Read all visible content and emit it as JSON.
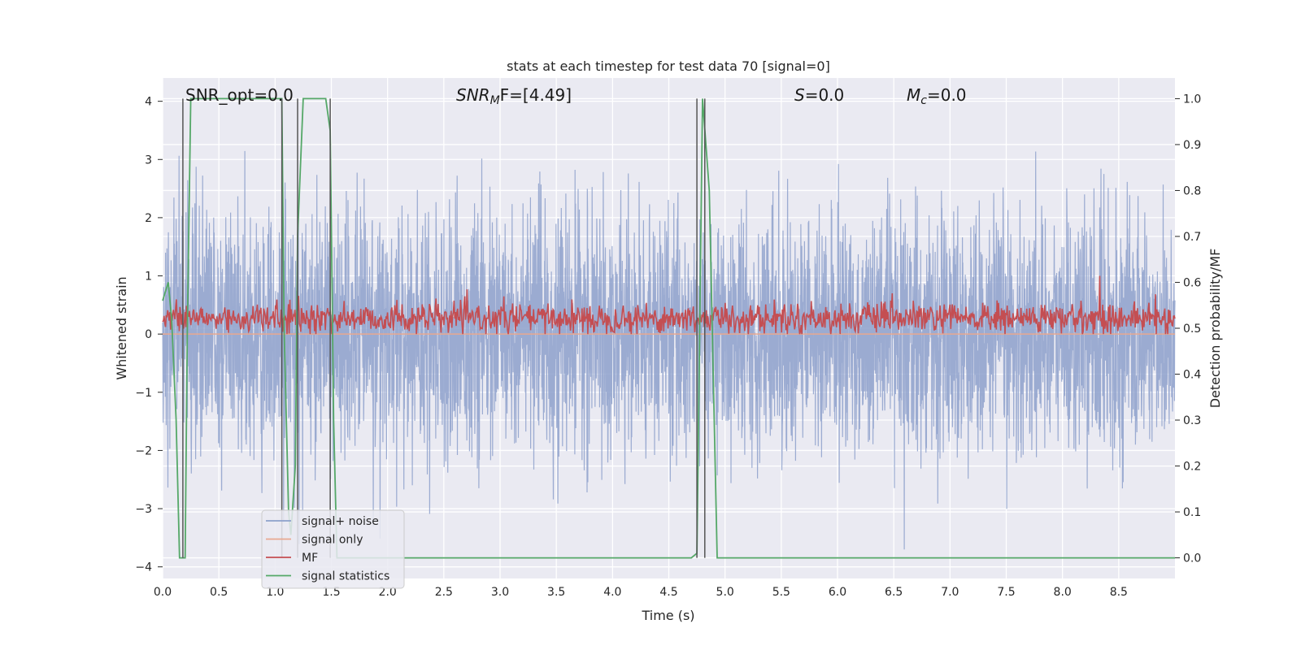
{
  "chart_data": {
    "type": "line",
    "title": "stats at each timestep for test data 70 [signal=0]",
    "xlabel": "Time (s)",
    "ylabel_left": "Whitened strain",
    "ylabel_right": "Detection probability/MF",
    "xlim": [
      0.0,
      9.0
    ],
    "ylim_left": [
      -4.2,
      4.4
    ],
    "ylim_right": [
      -0.045,
      1.045
    ],
    "x_ticks": [
      "0.0",
      "0.5",
      "1.0",
      "1.5",
      "2.0",
      "2.5",
      "3.0",
      "3.5",
      "4.0",
      "4.5",
      "5.0",
      "5.5",
      "6.0",
      "6.5",
      "7.0",
      "7.5",
      "8.0",
      "8.5"
    ],
    "y_ticks_left": [
      "−4",
      "−3",
      "−2",
      "−1",
      "0",
      "1",
      "2",
      "3",
      "4"
    ],
    "y_ticks_right": [
      "0.0",
      "0.1",
      "0.2",
      "0.3",
      "0.4",
      "0.5",
      "0.6",
      "0.7",
      "0.8",
      "0.9",
      "1.0"
    ],
    "grid": true,
    "legend_position": "bottom-left",
    "annotations": {
      "snr_opt": "SNR_opt=0.0",
      "snr_mf_base": "SNR",
      "snr_mf_sub": "M",
      "snr_mf_rest": "F=[4.49]",
      "s_sym": "S",
      "s_val": "=0.0",
      "mc_base": "M",
      "mc_sub": "c",
      "mc_val": "=0.0"
    },
    "series": [
      {
        "name": "signal+ noise",
        "axis": "left",
        "color": "#8da0cb",
        "description_note": "dense gaussian noise, approx. amplitude range -3.7 to 3.4",
        "x_range": [
          0.0,
          9.0
        ],
        "noise_std": 1.0
      },
      {
        "name": "signal only",
        "axis": "left",
        "color": "#e8a890",
        "x": [
          0.0,
          9.0
        ],
        "y": [
          0.0,
          0.0
        ]
      },
      {
        "name": "MF",
        "axis": "left",
        "color": "#c44e52",
        "x_range": [
          0.0,
          9.0
        ],
        "mean": 0.27,
        "spread": 0.13,
        "peak": {
          "x": 8.33,
          "y": 1.0
        }
      },
      {
        "name": "signal statistics",
        "axis": "right",
        "color": "#55a868",
        "x": [
          0.0,
          0.05,
          0.08,
          0.12,
          0.15,
          0.18,
          0.2,
          0.22,
          0.25,
          0.26,
          1.0,
          1.06,
          1.08,
          1.12,
          1.14,
          1.18,
          1.2,
          1.25,
          1.45,
          1.49,
          1.52,
          1.55,
          4.7,
          4.75,
          4.8,
          4.86,
          4.93,
          9.0
        ],
        "y": [
          0.56,
          0.6,
          0.52,
          0.3,
          0.0,
          0.0,
          0.0,
          0.5,
          1.0,
          1.0,
          1.0,
          1.0,
          0.5,
          0.1,
          0.05,
          0.2,
          0.7,
          1.0,
          1.0,
          0.93,
          0.3,
          0.0,
          0.0,
          0.01,
          1.0,
          0.8,
          0.0,
          0.0
        ]
      }
    ],
    "vertical_markers": [
      0.18,
      1.06,
      1.2,
      1.49,
      4.75,
      4.82
    ]
  }
}
